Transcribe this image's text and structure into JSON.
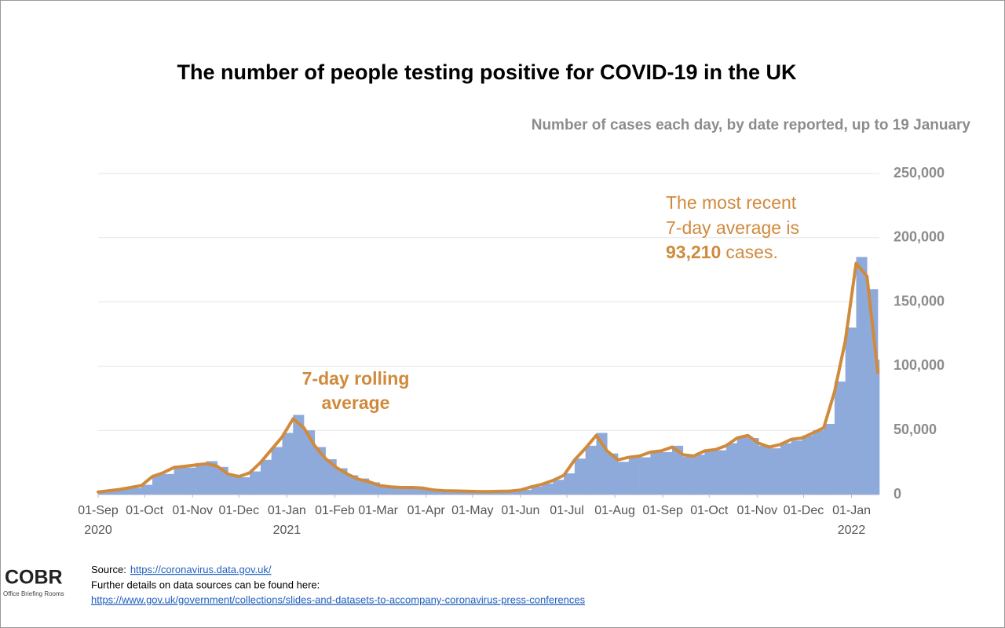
{
  "chart_data": {
    "type": "bar",
    "title": "The number of people testing positive for COVID-19 in the UK",
    "subtitle": "Number of cases each day, by date reported, up to 19 January",
    "x": [
      "2020-09-01",
      "2020-09-08",
      "2020-09-15",
      "2020-09-22",
      "2020-09-29",
      "2020-10-06",
      "2020-10-13",
      "2020-10-20",
      "2020-10-27",
      "2020-11-03",
      "2020-11-10",
      "2020-11-17",
      "2020-11-24",
      "2020-12-01",
      "2020-12-08",
      "2020-12-15",
      "2020-12-22",
      "2020-12-29",
      "2021-01-05",
      "2021-01-12",
      "2021-01-19",
      "2021-01-26",
      "2021-02-02",
      "2021-02-09",
      "2021-02-16",
      "2021-02-23",
      "2021-03-02",
      "2021-03-09",
      "2021-03-16",
      "2021-03-23",
      "2021-03-30",
      "2021-04-06",
      "2021-04-13",
      "2021-04-20",
      "2021-04-27",
      "2021-05-04",
      "2021-05-11",
      "2021-05-18",
      "2021-05-25",
      "2021-06-01",
      "2021-06-08",
      "2021-06-15",
      "2021-06-22",
      "2021-06-29",
      "2021-07-06",
      "2021-07-13",
      "2021-07-20",
      "2021-07-27",
      "2021-08-03",
      "2021-08-10",
      "2021-08-17",
      "2021-08-24",
      "2021-08-31",
      "2021-09-07",
      "2021-09-14",
      "2021-09-21",
      "2021-09-28",
      "2021-10-05",
      "2021-10-12",
      "2021-10-19",
      "2021-10-26",
      "2021-11-02",
      "2021-11-09",
      "2021-11-16",
      "2021-11-23",
      "2021-11-30",
      "2021-12-07",
      "2021-12-14",
      "2021-12-21",
      "2021-12-28",
      "2022-01-04",
      "2022-01-11",
      "2022-01-18"
    ],
    "series": [
      {
        "type": "bar",
        "color": "#8eaadb",
        "values": [
          1900,
          3100,
          4300,
          5200,
          7600,
          15500,
          16000,
          22500,
          21000,
          24500,
          26000,
          21500,
          15500,
          13500,
          18000,
          27000,
          37000,
          48000,
          62000,
          50000,
          37000,
          27500,
          20500,
          15000,
          12500,
          9500,
          7200,
          6100,
          5300,
          5800,
          4800,
          3300,
          3100,
          2600,
          2500,
          2300,
          2200,
          2600,
          2900,
          3700,
          6200,
          8500,
          11500,
          16500,
          28000,
          38000,
          48000,
          32000,
          25500,
          30000,
          29000,
          34000,
          33000,
          38000,
          29500,
          31000,
          35000,
          34500,
          40000,
          45000,
          44000,
          38000,
          36000,
          40000,
          42000,
          46000,
          50000,
          55000,
          88000,
          130000,
          185000,
          160000,
          105000
        ]
      },
      {
        "type": "line",
        "color": "#d08a3c",
        "values": [
          2000,
          3000,
          4000,
          5500,
          7000,
          14000,
          17000,
          21000,
          22000,
          23000,
          24000,
          22000,
          16000,
          14000,
          17000,
          25000,
          35000,
          45000,
          59000,
          52000,
          38000,
          28000,
          21000,
          16000,
          12000,
          10000,
          7000,
          6000,
          5500,
          5500,
          5000,
          3500,
          3000,
          2800,
          2600,
          2400,
          2300,
          2500,
          2700,
          3500,
          6000,
          8000,
          11000,
          15000,
          27000,
          36000,
          46000,
          34000,
          27000,
          29000,
          30000,
          33000,
          34000,
          37000,
          31000,
          30000,
          34000,
          35000,
          38000,
          44000,
          46000,
          40000,
          37000,
          39000,
          43000,
          44000,
          48000,
          52000,
          80000,
          120000,
          180000,
          170000,
          95000
        ]
      }
    ],
    "xlim": [
      "2020-09-01",
      "2022-01-19"
    ],
    "xticks": [
      {
        "value": "2020-09-01",
        "label": "01-Sep"
      },
      {
        "value": "2020-10-01",
        "label": "01-Oct"
      },
      {
        "value": "2020-11-01",
        "label": "01-Nov"
      },
      {
        "value": "2020-12-01",
        "label": "01-Dec"
      },
      {
        "value": "2021-01-01",
        "label": "01-Jan"
      },
      {
        "value": "2021-02-01",
        "label": "01-Feb"
      },
      {
        "value": "2021-03-01",
        "label": "01-Mar"
      },
      {
        "value": "2021-04-01",
        "label": "01-Apr"
      },
      {
        "value": "2021-05-01",
        "label": "01-May"
      },
      {
        "value": "2021-06-01",
        "label": "01-Jun"
      },
      {
        "value": "2021-07-01",
        "label": "01-Jul"
      },
      {
        "value": "2021-08-01",
        "label": "01-Aug"
      },
      {
        "value": "2021-09-01",
        "label": "01-Sep"
      },
      {
        "value": "2021-10-01",
        "label": "01-Oct"
      },
      {
        "value": "2021-11-01",
        "label": "01-Nov"
      },
      {
        "value": "2021-12-01",
        "label": "01-Dec"
      },
      {
        "value": "2022-01-01",
        "label": "01-Jan"
      }
    ],
    "year_labels": [
      {
        "value": "2020-09-01",
        "label": "2020"
      },
      {
        "value": "2021-01-01",
        "label": "2021"
      },
      {
        "value": "2022-01-01",
        "label": "2022"
      }
    ],
    "ylim": [
      0,
      250000
    ],
    "yticks": [
      0,
      {
        "value": 50000,
        "label": "50,000"
      },
      {
        "value": 100000,
        "label": "100,000"
      },
      {
        "value": 150000,
        "label": "150,000"
      },
      {
        "value": 200000,
        "label": "200,000"
      },
      {
        "value": 250000,
        "label": "250,000"
      }
    ],
    "grid": true,
    "annotations": {
      "rolling": [
        "7-day rolling",
        "average"
      ],
      "recent": {
        "lines": [
          "The most recent",
          "7-day average is"
        ],
        "value": "93,210",
        "suffix": "cases."
      }
    }
  },
  "footer": {
    "logo": "COBR",
    "logo_sub": "Office Briefing Rooms",
    "source_label": "Source:",
    "source_url": "https://coronavirus.data.gov.uk/",
    "details": "Further details on data sources can be found here:",
    "details_url": "https://www.gov.uk/government/collections/slides-and-datasets-to-accompany-coronavirus-press-conferences"
  }
}
